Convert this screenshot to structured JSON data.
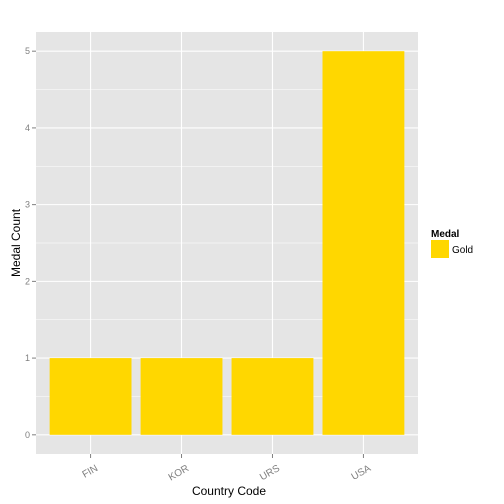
{
  "chart_data": {
    "type": "bar",
    "categories": [
      "FIN",
      "KOR",
      "URS",
      "USA"
    ],
    "series": [
      {
        "name": "Gold",
        "values": [
          1,
          1,
          1,
          5
        ]
      }
    ],
    "xlabel": "Country Code",
    "ylabel": "Medal Count",
    "ylim": [
      0,
      5
    ],
    "yticks": [
      0,
      1,
      2,
      3,
      4,
      5
    ],
    "grid": true,
    "legend": {
      "title": "Medal",
      "placement": "right"
    },
    "colors": {
      "panel": "#e5e5e5",
      "bar": "#ffd700",
      "grid": "#ffffff"
    }
  }
}
